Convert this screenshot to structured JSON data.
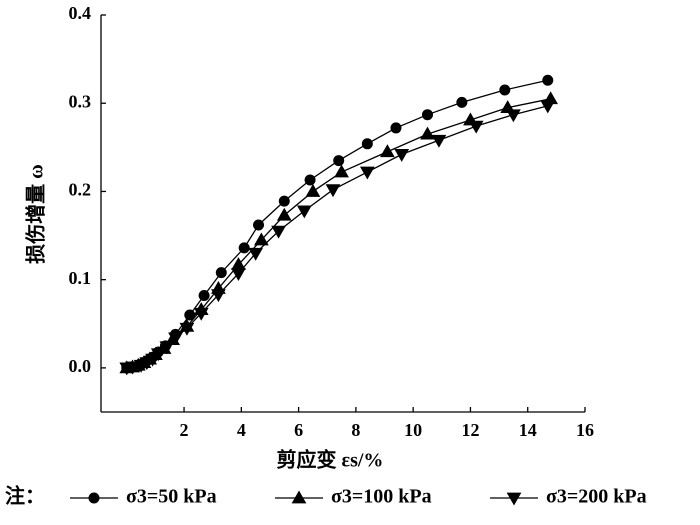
{
  "chart_data": {
    "type": "line",
    "xlabel": "剪应变 εs/%",
    "ylabel": "损伤增量 ω",
    "legend_title": "注：",
    "xlim": [
      -0.9,
      16
    ],
    "xticks": [
      2,
      4,
      6,
      8,
      10,
      12,
      14,
      16
    ],
    "ylim": [
      -0.05,
      0.4
    ],
    "yticks": [
      {
        "value": 0,
        "label": "0.0"
      },
      0.1,
      0.2,
      0.3,
      0.4
    ],
    "grid": false,
    "series": [
      {
        "name": "σ3=50 kPa",
        "color": "#000000",
        "marker": "circle",
        "x": [
          0,
          0.15,
          0.4,
          0.55,
          0.7,
          0.9,
          1.1,
          1.35,
          1.7,
          2.2,
          2.7,
          3.3,
          4.1,
          4.6,
          5.5,
          6.4,
          7.4,
          8.4,
          9.4,
          10.5,
          11.7,
          13.2,
          14.7
        ],
        "values": [
          0,
          0.001,
          0.002,
          0.005,
          0.008,
          0.012,
          0.018,
          0.025,
          0.038,
          0.06,
          0.082,
          0.108,
          0.136,
          0.162,
          0.189,
          0.213,
          0.235,
          0.254,
          0.272,
          0.287,
          0.301,
          0.315,
          0.326
        ]
      },
      {
        "name": "σ3=100 kPa",
        "color": "#000000",
        "marker": "triangle-up",
        "x": [
          0,
          0.2,
          0.4,
          0.6,
          0.8,
          1.0,
          1.3,
          1.6,
          2.1,
          2.6,
          3.2,
          3.9,
          4.7,
          5.5,
          6.5,
          7.5,
          9.1,
          10.5,
          12,
          13.3,
          14.8
        ],
        "values": [
          0,
          0.001,
          0.003,
          0.006,
          0.01,
          0.015,
          0.022,
          0.032,
          0.047,
          0.066,
          0.09,
          0.117,
          0.145,
          0.173,
          0.2,
          0.222,
          0.245,
          0.265,
          0.281,
          0.295,
          0.305
        ]
      },
      {
        "name": "σ3=200 kPa",
        "color": "#000000",
        "marker": "triangle-down",
        "x": [
          0,
          0.2,
          0.5,
          0.7,
          0.9,
          1.1,
          1.4,
          1.7,
          2.1,
          2.6,
          3.2,
          3.9,
          4.5,
          5.3,
          6.2,
          7.2,
          8.4,
          9.6,
          10.9,
          12.2,
          13.5,
          14.7
        ],
        "values": [
          0,
          0.001,
          0.003,
          0.006,
          0.01,
          0.016,
          0.024,
          0.034,
          0.045,
          0.062,
          0.083,
          0.107,
          0.13,
          0.155,
          0.178,
          0.202,
          0.222,
          0.242,
          0.258,
          0.274,
          0.287,
          0.297
        ]
      }
    ]
  }
}
